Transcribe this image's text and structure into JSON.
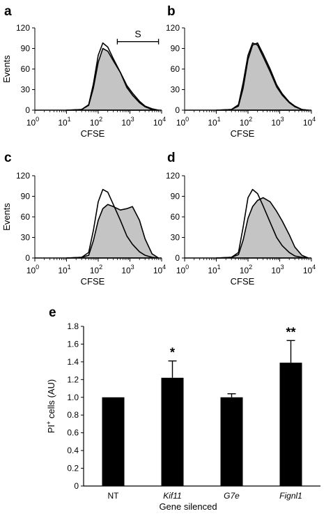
{
  "chart_data": [
    {
      "panel": "a",
      "type": "area",
      "xlabel": "CFSE",
      "ylabel": "Events",
      "x_scale": "log",
      "xlim": [
        1,
        10000
      ],
      "ylim": [
        0,
        120
      ],
      "yticks": [
        0,
        30,
        60,
        90,
        120
      ],
      "xticks": [
        {
          "base": "10",
          "exp": "0"
        },
        {
          "base": "10",
          "exp": "1"
        },
        {
          "base": "10",
          "exp": "2"
        },
        {
          "base": "10",
          "exp": "3"
        },
        {
          "base": "10",
          "exp": "4"
        }
      ],
      "annotation": {
        "label": "S",
        "x_from": 400,
        "x_to": 8000,
        "y": 100
      },
      "series": [
        {
          "style": "outline",
          "x": [
            10,
            30,
            50,
            70,
            100,
            140,
            200,
            300,
            500,
            800,
            1200,
            2000,
            3000,
            5000,
            8000
          ],
          "values": [
            0,
            1,
            8,
            38,
            80,
            98,
            92,
            75,
            55,
            33,
            22,
            11,
            5,
            1,
            0
          ]
        },
        {
          "style": "filled",
          "x": [
            10,
            30,
            50,
            70,
            100,
            140,
            200,
            300,
            500,
            800,
            1200,
            2000,
            3000,
            5000,
            8000
          ],
          "values": [
            0,
            1,
            7,
            32,
            70,
            90,
            86,
            72,
            55,
            36,
            25,
            13,
            6,
            2,
            0
          ]
        }
      ]
    },
    {
      "panel": "b",
      "type": "area",
      "xlabel": "CFSE",
      "ylabel": "",
      "x_scale": "log",
      "xlim": [
        1,
        10000
      ],
      "ylim": [
        0,
        120
      ],
      "yticks": [
        0,
        30,
        60,
        90,
        120
      ],
      "xticks": [
        {
          "base": "10",
          "exp": "0"
        },
        {
          "base": "10",
          "exp": "1"
        },
        {
          "base": "10",
          "exp": "2"
        },
        {
          "base": "10",
          "exp": "3"
        },
        {
          "base": "10",
          "exp": "4"
        }
      ],
      "series": [
        {
          "style": "outline",
          "x": [
            10,
            30,
            50,
            70,
            100,
            140,
            200,
            300,
            500,
            800,
            1200,
            2000,
            3000,
            5000,
            8000
          ],
          "values": [
            0,
            1,
            8,
            40,
            80,
            98,
            95,
            78,
            56,
            34,
            22,
            11,
            5,
            1,
            0
          ]
        },
        {
          "style": "filled",
          "x": [
            10,
            30,
            50,
            70,
            100,
            140,
            200,
            300,
            500,
            800,
            1200,
            2000,
            3000,
            5000,
            8000
          ],
          "values": [
            0,
            1,
            6,
            32,
            74,
            95,
            98,
            82,
            60,
            37,
            24,
            12,
            6,
            1,
            0
          ]
        }
      ]
    },
    {
      "panel": "c",
      "type": "area",
      "xlabel": "CFSE",
      "ylabel": "Events",
      "x_scale": "log",
      "xlim": [
        1,
        10000
      ],
      "ylim": [
        0,
        120
      ],
      "yticks": [
        0,
        30,
        60,
        90,
        120
      ],
      "xticks": [
        {
          "base": "10",
          "exp": "0"
        },
        {
          "base": "10",
          "exp": "1"
        },
        {
          "base": "10",
          "exp": "2"
        },
        {
          "base": "10",
          "exp": "3"
        },
        {
          "base": "10",
          "exp": "4"
        }
      ],
      "series": [
        {
          "style": "outline",
          "x": [
            10,
            30,
            50,
            70,
            100,
            140,
            200,
            300,
            500,
            800,
            1200,
            2000,
            3000,
            5000,
            8000
          ],
          "values": [
            0,
            1,
            8,
            40,
            82,
            100,
            96,
            78,
            55,
            32,
            20,
            9,
            4,
            1,
            0
          ]
        },
        {
          "style": "filled",
          "x": [
            10,
            30,
            50,
            70,
            100,
            140,
            200,
            300,
            500,
            800,
            1200,
            2000,
            3000,
            5000,
            8000
          ],
          "values": [
            0,
            1,
            4,
            25,
            55,
            72,
            78,
            75,
            70,
            72,
            75,
            55,
            28,
            6,
            0
          ]
        }
      ]
    },
    {
      "panel": "d",
      "type": "area",
      "xlabel": "CFSE",
      "ylabel": "",
      "x_scale": "log",
      "xlim": [
        1,
        10000
      ],
      "ylim": [
        0,
        120
      ],
      "yticks": [
        0,
        30,
        60,
        90,
        120
      ],
      "xticks": [
        {
          "base": "10",
          "exp": "0"
        },
        {
          "base": "10",
          "exp": "1"
        },
        {
          "base": "10",
          "exp": "2"
        },
        {
          "base": "10",
          "exp": "3"
        },
        {
          "base": "10",
          "exp": "4"
        }
      ],
      "series": [
        {
          "style": "outline",
          "x": [
            10,
            30,
            50,
            70,
            100,
            140,
            200,
            300,
            500,
            800,
            1200,
            2000,
            3000,
            5000,
            8000
          ],
          "values": [
            0,
            1,
            8,
            45,
            88,
            100,
            94,
            76,
            52,
            30,
            18,
            8,
            3,
            1,
            0
          ]
        },
        {
          "style": "filled",
          "x": [
            10,
            30,
            50,
            70,
            100,
            140,
            200,
            300,
            500,
            800,
            1200,
            2000,
            3000,
            5000,
            8000
          ],
          "values": [
            0,
            1,
            5,
            26,
            58,
            75,
            84,
            88,
            82,
            68,
            54,
            34,
            16,
            4,
            0
          ]
        }
      ]
    },
    {
      "panel": "e",
      "type": "bar",
      "xlabel": "Gene silenced",
      "ylabel_base": "PI",
      "ylabel_sup": "+",
      "ylabel_rest": " cells (AU)",
      "ylim": [
        0,
        1.8
      ],
      "yticks": [
        "0",
        "0.2",
        "0.4",
        "0.6",
        "0.8",
        "1.0",
        "1.2",
        "1.4",
        "1.6",
        "1.8"
      ],
      "categories": [
        "NT",
        "Kif11",
        "G7e",
        "Fignl1"
      ],
      "category_italic": [
        false,
        true,
        true,
        true
      ],
      "values": [
        1.0,
        1.22,
        1.0,
        1.39
      ],
      "errors": [
        0,
        0.19,
        0.04,
        0.25
      ],
      "significance": [
        "",
        "*",
        "",
        "**"
      ]
    }
  ],
  "colors": {
    "fill": "#c4c4c4",
    "line": "#000000",
    "bar": "#000000"
  }
}
